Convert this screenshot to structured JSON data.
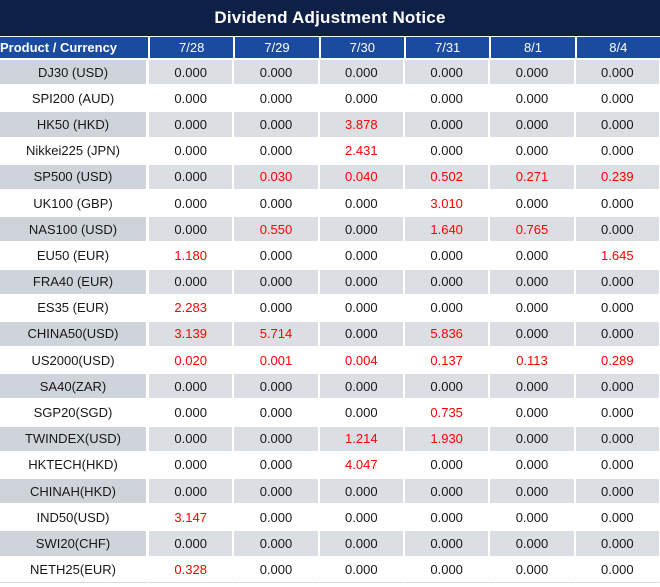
{
  "title": "Dividend Adjustment Notice",
  "colors": {
    "title_background": "#0e2045",
    "header_background": "#1b4b9e",
    "stripe_row": "#dbdee2",
    "stripe_product_cell": "#cfd4db",
    "nonzero_value_red": "#ff0000",
    "zero_value_black": "#171717",
    "header_text": "#ffffff"
  },
  "table": {
    "product_header": "Product / Currency",
    "date_columns": [
      "7/28",
      "7/29",
      "7/30",
      "7/31",
      "8/1",
      "8/4"
    ],
    "rows": [
      {
        "name": "DJ30 (USD)",
        "values": [
          "0.000",
          "0.000",
          "0.000",
          "0.000",
          "0.000",
          "0.000"
        ]
      },
      {
        "name": "SPI200 (AUD)",
        "values": [
          "0.000",
          "0.000",
          "0.000",
          "0.000",
          "0.000",
          "0.000"
        ]
      },
      {
        "name": "HK50 (HKD)",
        "values": [
          "0.000",
          "0.000",
          "3.878",
          "0.000",
          "0.000",
          "0.000"
        ]
      },
      {
        "name": "Nikkei225 (JPN)",
        "values": [
          "0.000",
          "0.000",
          "2.431",
          "0.000",
          "0.000",
          "0.000"
        ]
      },
      {
        "name": "SP500 (USD)",
        "values": [
          "0.000",
          "0.030",
          "0.040",
          "0.502",
          "0.271",
          "0.239"
        ]
      },
      {
        "name": "UK100 (GBP)",
        "values": [
          "0.000",
          "0.000",
          "0.000",
          "3.010",
          "0.000",
          "0.000"
        ]
      },
      {
        "name": "NAS100 (USD)",
        "values": [
          "0.000",
          "0.550",
          "0.000",
          "1.640",
          "0.765",
          "0.000"
        ]
      },
      {
        "name": "EU50 (EUR)",
        "values": [
          "1.180",
          "0.000",
          "0.000",
          "0.000",
          "0.000",
          "1.645"
        ]
      },
      {
        "name": "FRA40 (EUR)",
        "values": [
          "0.000",
          "0.000",
          "0.000",
          "0.000",
          "0.000",
          "0.000"
        ]
      },
      {
        "name": "ES35 (EUR)",
        "values": [
          "2.283",
          "0.000",
          "0.000",
          "0.000",
          "0.000",
          "0.000"
        ]
      },
      {
        "name": "CHINA50(USD)",
        "values": [
          "3.139",
          "5.714",
          "0.000",
          "5.836",
          "0.000",
          "0.000"
        ]
      },
      {
        "name": "US2000(USD)",
        "values": [
          "0.020",
          "0.001",
          "0.004",
          "0.137",
          "0.113",
          "0.289"
        ]
      },
      {
        "name": "SA40(ZAR)",
        "values": [
          "0.000",
          "0.000",
          "0.000",
          "0.000",
          "0.000",
          "0.000"
        ]
      },
      {
        "name": "SGP20(SGD)",
        "values": [
          "0.000",
          "0.000",
          "0.000",
          "0.735",
          "0.000",
          "0.000"
        ]
      },
      {
        "name": "TWINDEX(USD)",
        "values": [
          "0.000",
          "0.000",
          "1.214",
          "1.930",
          "0.000",
          "0.000"
        ]
      },
      {
        "name": "HKTECH(HKD)",
        "values": [
          "0.000",
          "0.000",
          "4.047",
          "0.000",
          "0.000",
          "0.000"
        ]
      },
      {
        "name": "CHINAH(HKD)",
        "values": [
          "0.000",
          "0.000",
          "0.000",
          "0.000",
          "0.000",
          "0.000"
        ]
      },
      {
        "name": "IND50(USD)",
        "values": [
          "3.147",
          "0.000",
          "0.000",
          "0.000",
          "0.000",
          "0.000"
        ]
      },
      {
        "name": "SWI20(CHF)",
        "values": [
          "0.000",
          "0.000",
          "0.000",
          "0.000",
          "0.000",
          "0.000"
        ]
      },
      {
        "name": "NETH25(EUR)",
        "values": [
          "0.328",
          "0.000",
          "0.000",
          "0.000",
          "0.000",
          "0.000"
        ]
      }
    ]
  }
}
